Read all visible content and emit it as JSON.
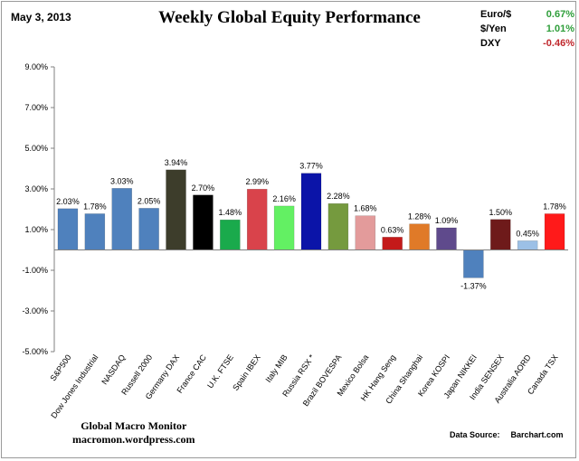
{
  "header": {
    "date": "May 3, 2013",
    "title": "Weekly Global Equity Performance"
  },
  "fx_panel": [
    {
      "label": "Euro/$",
      "value": "0.67%",
      "color": "#2e9e3a"
    },
    {
      "label": "$/Yen",
      "value": "1.01%",
      "color": "#2e9e3a"
    },
    {
      "label": "DXY",
      "value": "-0.46%",
      "color": "#c0282d"
    }
  ],
  "footer": {
    "brand": "Global Macro Monitor",
    "site": "macromon.wordpress.com",
    "source_label": "Data Source:",
    "source": "Barchart.com"
  },
  "chart_data": {
    "type": "bar",
    "title": "Weekly Global Equity Performance",
    "xlabel": "",
    "ylabel": "",
    "ylim": [
      -5,
      9
    ],
    "yticks": [
      9,
      7,
      5,
      3,
      1,
      -1,
      -3,
      -5
    ],
    "ytick_labels": [
      "9.00%",
      "7.00%",
      "5.00%",
      "3.00%",
      "1.00%",
      "-1.00%",
      "-3.00%",
      "-5.00%"
    ],
    "grid": false,
    "legend": "none",
    "categories": [
      "S&P500",
      "Dow Jones Industrial",
      "NASDAQ",
      "Russell 2000",
      "Germany DAX",
      "France CAC",
      "U.K. FTSE",
      "Spain IBEX",
      "Italy  MIB",
      "Russia RSX *",
      "Brazil BOVESPA",
      "Mexico Bolsa",
      "HK Hang Seng",
      "China Shanghai",
      "Korea KOSPI",
      "Japan NIKKEI",
      "India SENSEX",
      "Australia AORD",
      "Canada TSX"
    ],
    "values": [
      2.03,
      1.78,
      3.03,
      2.05,
      3.94,
      2.7,
      1.48,
      2.99,
      2.16,
      3.77,
      2.28,
      1.68,
      0.63,
      1.28,
      1.09,
      -1.37,
      1.5,
      0.45,
      1.78
    ],
    "value_labels": [
      "2.03%",
      "1.78%",
      "3.03%",
      "2.05%",
      "3.94%",
      "2.70%",
      "1.48%",
      "2.99%",
      "2.16%",
      "3.77%",
      "2.28%",
      "1.68%",
      "0.63%",
      "1.28%",
      "1.09%",
      "-1.37%",
      "1.50%",
      "0.45%",
      "1.78%"
    ],
    "colors": [
      "#4f81bd",
      "#4f81bd",
      "#4f81bd",
      "#4f81bd",
      "#3d3d2b",
      "#000000",
      "#1aaa4c",
      "#d9434b",
      "#63f063",
      "#0b14a8",
      "#759a3e",
      "#e39b9b",
      "#c41a1a",
      "#e07a28",
      "#5f4a8c",
      "#4f81bd",
      "#6e1a1a",
      "#9cc0e6",
      "#ff1a1a"
    ]
  }
}
